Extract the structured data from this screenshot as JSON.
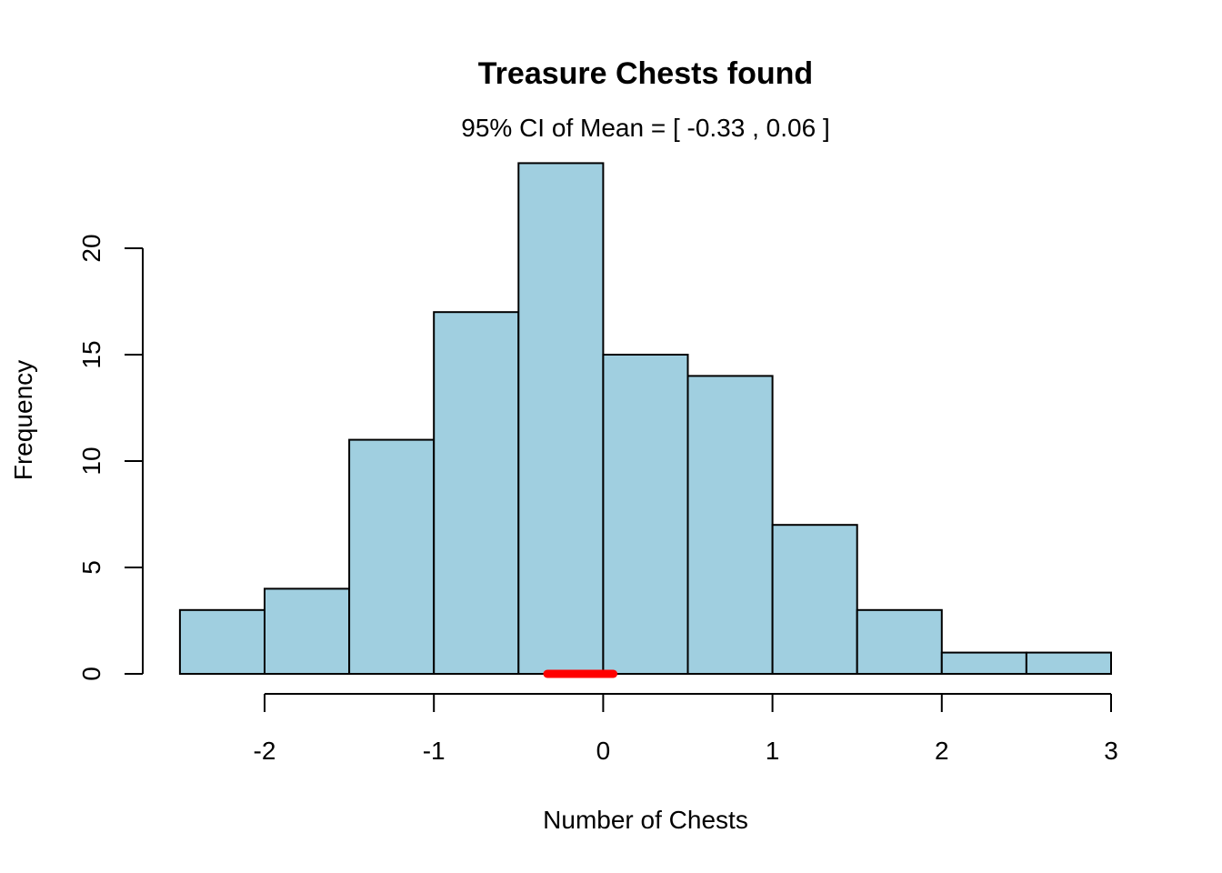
{
  "chart_data": {
    "type": "bar",
    "subtype": "histogram",
    "title": "Treasure Chests found",
    "subtitle": "95% CI of Mean = [ -0.33 , 0.06 ]",
    "xlabel": "Number of Chests",
    "ylabel": "Frequency",
    "bin_edges": [
      -2.5,
      -2,
      -1.5,
      -1,
      -0.5,
      0,
      0.5,
      1,
      1.5,
      2,
      2.5,
      3
    ],
    "values": [
      3,
      4,
      11,
      17,
      24,
      15,
      14,
      7,
      3,
      1,
      1
    ],
    "xticks": [
      -2,
      -1,
      0,
      1,
      2,
      3
    ],
    "yticks": [
      0,
      5,
      10,
      15,
      20
    ],
    "xlim": [
      -2.5,
      3
    ],
    "ylim": [
      0,
      24
    ],
    "grid": false,
    "ci_interval": {
      "low": -0.33,
      "high": 0.06,
      "y": 0
    },
    "colors": {
      "bar_fill": "#a0cfe0",
      "bar_edge": "#000000",
      "ci": "#ff0000"
    }
  }
}
